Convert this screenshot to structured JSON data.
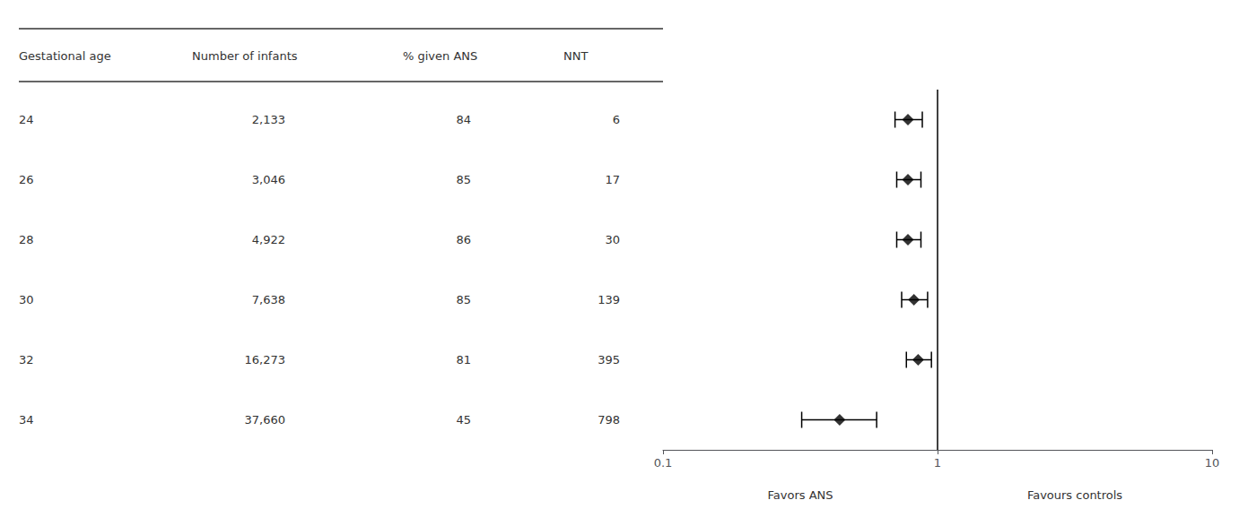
{
  "chart_data": {
    "type": "forest",
    "categories": [
      "24",
      "26",
      "28",
      "30",
      "32",
      "34"
    ],
    "values": [
      0.78,
      0.78,
      0.78,
      0.82,
      0.85,
      0.44
    ],
    "ci_low": [
      0.7,
      0.71,
      0.71,
      0.74,
      0.77,
      0.32
    ],
    "ci_high": [
      0.88,
      0.87,
      0.87,
      0.92,
      0.95,
      0.6
    ],
    "table": {
      "headers": [
        "Gestational age",
        "Number of infants",
        "% given ANS",
        "NNT"
      ],
      "columns": [
        [
          "2,133",
          "3,046",
          "4,922",
          "7,638",
          "16,273",
          "37,660"
        ],
        [
          "84",
          "85",
          "86",
          "85",
          "81",
          "45"
        ],
        [
          "6",
          "17",
          "30",
          "139",
          "395",
          "798"
        ]
      ]
    },
    "xlim": [
      0.1,
      10
    ],
    "xticks": [
      0.1,
      1,
      10
    ],
    "log": "x",
    "reference_line": 1,
    "xlabel_left": "Favors ANS",
    "xlabel_right": "Favours controls",
    "marker": "diamond",
    "color": "#000000",
    "grid": false,
    "tick_labels": "x"
  }
}
